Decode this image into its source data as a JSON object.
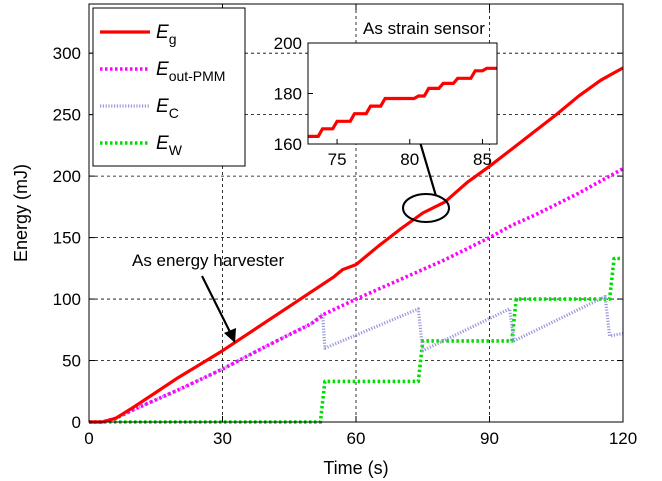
{
  "chart_data": {
    "type": "line",
    "xlabel": "Time (s)",
    "ylabel": "Energy (mJ)",
    "xlim": [
      0,
      120
    ],
    "ylim": [
      0,
      340
    ],
    "xticks": [
      "0",
      "30",
      "60",
      "90",
      "120"
    ],
    "yticks": [
      "0",
      "50",
      "100",
      "150",
      "200",
      "250",
      "300"
    ],
    "grid": true,
    "legend_position": "top-left",
    "series": [
      {
        "name": "E_g",
        "symbol": "E",
        "subscript": "g",
        "color": "#ff0000",
        "style": "solid",
        "points": [
          [
            0,
            0
          ],
          [
            3,
            0
          ],
          [
            6,
            3
          ],
          [
            10,
            12
          ],
          [
            15,
            24
          ],
          [
            20,
            36
          ],
          [
            25,
            47
          ],
          [
            30,
            58
          ],
          [
            35,
            70
          ],
          [
            40,
            82
          ],
          [
            45,
            94
          ],
          [
            50,
            106
          ],
          [
            55,
            118
          ],
          [
            57,
            124
          ],
          [
            60,
            128
          ],
          [
            65,
            143
          ],
          [
            70,
            157
          ],
          [
            75,
            170
          ],
          [
            80,
            179
          ],
          [
            85,
            195
          ],
          [
            90,
            208
          ],
          [
            95,
            222
          ],
          [
            100,
            236
          ],
          [
            105,
            250
          ],
          [
            110,
            265
          ],
          [
            115,
            278
          ],
          [
            120,
            288
          ]
        ]
      },
      {
        "name": "E_out-PMM",
        "symbol": "E",
        "subscript": "out-PMM",
        "color": "#ff00ff",
        "style": "dotted",
        "points": [
          [
            0,
            0
          ],
          [
            3,
            0
          ],
          [
            6,
            3
          ],
          [
            10,
            10
          ],
          [
            20,
            26
          ],
          [
            30,
            43
          ],
          [
            40,
            62
          ],
          [
            50,
            80
          ],
          [
            53,
            88
          ],
          [
            60,
            100
          ],
          [
            70,
            116
          ],
          [
            80,
            132
          ],
          [
            90,
            150
          ],
          [
            95,
            160
          ],
          [
            100,
            168
          ],
          [
            110,
            186
          ],
          [
            120,
            206
          ]
        ]
      },
      {
        "name": "E_C",
        "symbol": "E",
        "subscript": "C",
        "color": "#9999dd",
        "style": "dotted",
        "points": [
          [
            0,
            0
          ],
          [
            3,
            0
          ],
          [
            6,
            3
          ],
          [
            10,
            10
          ],
          [
            20,
            26
          ],
          [
            30,
            43
          ],
          [
            40,
            62
          ],
          [
            50,
            80
          ],
          [
            52.5,
            88
          ],
          [
            53,
            60
          ],
          [
            74,
            92
          ],
          [
            75,
            58
          ],
          [
            94.5,
            92
          ],
          [
            95.5,
            66
          ],
          [
            116,
            102
          ],
          [
            117,
            70
          ],
          [
            120,
            72
          ]
        ]
      },
      {
        "name": "E_W",
        "symbol": "E",
        "subscript": "W",
        "color": "#00dd00",
        "style": "dotted",
        "points": [
          [
            0,
            0
          ],
          [
            52,
            0
          ],
          [
            53,
            33
          ],
          [
            74,
            33
          ],
          [
            75,
            66
          ],
          [
            95,
            66
          ],
          [
            96,
            100
          ],
          [
            117,
            100
          ],
          [
            118,
            133
          ],
          [
            120,
            133
          ]
        ]
      }
    ],
    "annotations": [
      "As energy harvester",
      "As strain sensor"
    ],
    "inset": {
      "title": "As strain sensor",
      "xlim": [
        73,
        86
      ],
      "ylim": [
        160,
        200
      ],
      "xticks": [
        "75",
        "80",
        "85"
      ],
      "yticks": [
        "160",
        "180",
        "200"
      ],
      "points": [
        [
          73,
          163
        ],
        [
          73.7,
          163
        ],
        [
          74,
          166
        ],
        [
          74.7,
          166
        ],
        [
          75,
          169
        ],
        [
          75.9,
          169
        ],
        [
          76.2,
          172
        ],
        [
          77,
          172
        ],
        [
          77.3,
          175
        ],
        [
          78,
          175
        ],
        [
          78.3,
          178
        ],
        [
          80.3,
          178
        ],
        [
          80.6,
          179
        ],
        [
          81,
          179
        ],
        [
          81.3,
          182
        ],
        [
          82,
          182
        ],
        [
          82.3,
          184
        ],
        [
          83,
          184
        ],
        [
          83.3,
          186
        ],
        [
          84.2,
          186
        ],
        [
          84.5,
          189
        ],
        [
          85,
          189
        ],
        [
          85.3,
          190
        ],
        [
          86,
          190
        ]
      ]
    }
  }
}
